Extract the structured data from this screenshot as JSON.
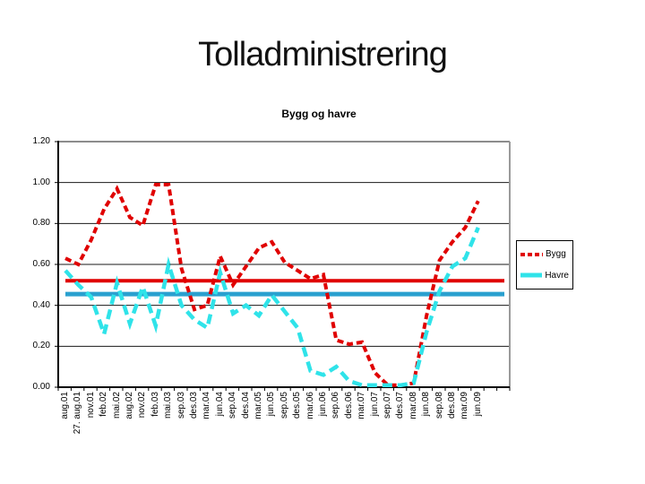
{
  "page": {
    "title": "Tolladministrering"
  },
  "chart_data": {
    "type": "line",
    "title": "Bygg og havre",
    "categories": [
      "aug.01",
      "27. aug.01",
      "nov.01",
      "feb.02",
      "mai.02",
      "aug.02",
      "nov.02",
      "feb.03",
      "mai.03",
      "sep.03",
      "des.03",
      "mar.04",
      "jun.04",
      "sep.04",
      "des.04",
      "mar.05",
      "jun.05",
      "sep.05",
      "des.05",
      "mar.06",
      "jun.06",
      "sep.06",
      "des.06",
      "mar.07",
      "jun.07",
      "sep.07",
      "des.07",
      "mar.08",
      "jun.08",
      "sep.08",
      "des.08",
      "mar.09",
      "jun.09"
    ],
    "yticks": [
      "1.20",
      "1.00",
      "0.80",
      "0.60",
      "0.40",
      "0.20",
      "0.00"
    ],
    "ylim": [
      0,
      1.2
    ],
    "grid": true,
    "legend_position": "right",
    "series": [
      {
        "name": "Bygg",
        "color": "#e00000",
        "style": "dashed",
        "values": [
          0.63,
          0.6,
          0.72,
          0.87,
          0.97,
          0.83,
          0.79,
          0.99,
          0.99,
          0.58,
          0.38,
          0.4,
          0.64,
          0.5,
          0.59,
          0.68,
          0.71,
          0.61,
          0.57,
          0.53,
          0.55,
          0.23,
          0.21,
          0.22,
          0.07,
          0.01,
          0.01,
          0.02,
          0.35,
          0.62,
          0.71,
          0.78,
          0.91
        ]
      },
      {
        "name": "Havre",
        "color": "#2fe3e9",
        "style": "dashed",
        "values": [
          0.57,
          0.5,
          0.44,
          0.26,
          0.51,
          0.31,
          0.49,
          0.3,
          0.6,
          0.4,
          0.33,
          0.29,
          0.56,
          0.36,
          0.4,
          0.35,
          0.45,
          0.37,
          0.29,
          0.08,
          0.06,
          0.1,
          0.03,
          0.01,
          0.01,
          0.01,
          0.01,
          0.02,
          0.27,
          0.47,
          0.59,
          0.63,
          0.78
        ]
      }
    ],
    "reference_lines": [
      {
        "value": 0.52,
        "color": "#e00000",
        "width": 4
      },
      {
        "value": 0.455,
        "color": "#2aa0cf",
        "width": 5
      }
    ]
  }
}
